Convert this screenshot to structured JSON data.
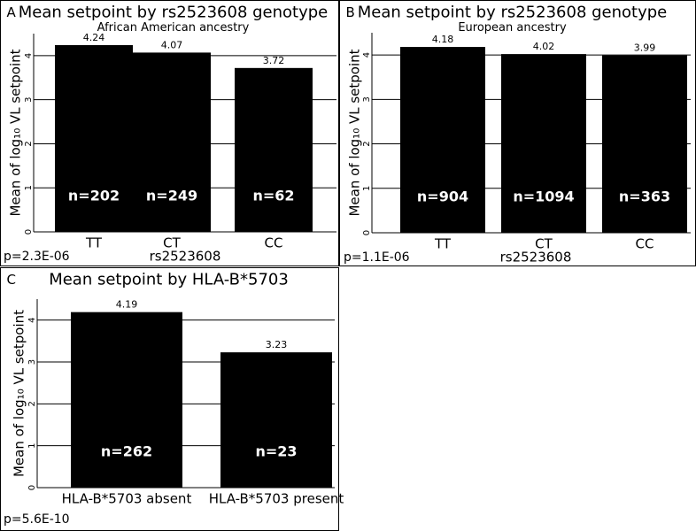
{
  "chart_data": [
    {
      "type": "bar",
      "panel": "A",
      "title": "Mean setpoint by rs2523608 genotype",
      "subtitle": "African American ancestry",
      "y_label": "Mean of log₁₀ VL setpoint",
      "x_label": "rs2523608",
      "p_value": "p=2.3E-06",
      "categories": [
        "TT",
        "CT",
        "CC"
      ],
      "values": [
        4.24,
        4.07,
        3.72
      ],
      "bar_annotations": [
        "n=202",
        "n=249",
        "n=62"
      ],
      "color": "#000000",
      "ylim": [
        0,
        4.5
      ],
      "yticks": [
        0,
        1,
        2,
        3,
        4
      ],
      "grid": true
    },
    {
      "type": "bar",
      "panel": "B",
      "title": "Mean setpoint by rs2523608 genotype",
      "subtitle": "European ancestry",
      "y_label": "Mean of log₁₀ VL setpoint",
      "x_label": "rs2523608",
      "p_value": "p=1.1E-06",
      "categories": [
        "TT",
        "CT",
        "CC"
      ],
      "values": [
        4.18,
        4.02,
        3.99
      ],
      "bar_annotations": [
        "n=904",
        "n=1094",
        "n=363"
      ],
      "color": "#000000",
      "ylim": [
        0,
        4.5
      ],
      "yticks": [
        0,
        1,
        2,
        3,
        4
      ],
      "grid": true
    },
    {
      "type": "bar",
      "panel": "C",
      "title": "Mean setpoint by HLA-B*5703",
      "y_label": "Mean of log₁₀ VL setpoint",
      "p_value": "p=5.6E-10",
      "categories": [
        "HLA-B*5703 absent",
        "HLA-B*5703 present"
      ],
      "values": [
        4.19,
        3.23
      ],
      "bar_annotations": [
        "n=262",
        "n=23"
      ],
      "color": "#000000",
      "ylim": [
        0,
        4.5
      ],
      "yticks": [
        0,
        1,
        2,
        3,
        4
      ],
      "grid": true
    }
  ]
}
